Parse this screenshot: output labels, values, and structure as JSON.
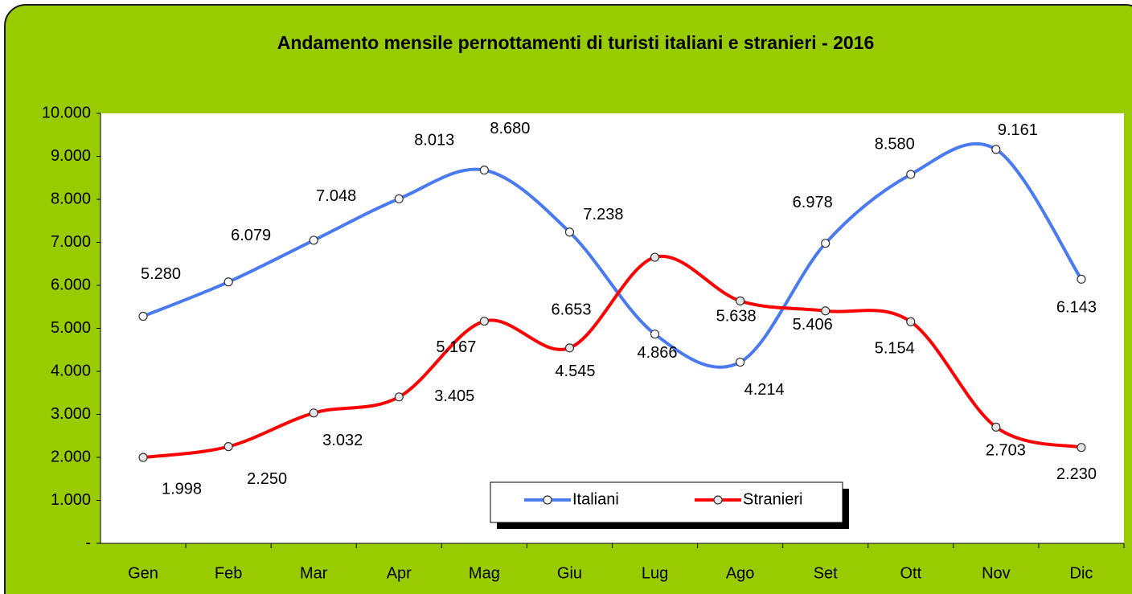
{
  "chart_data": {
    "type": "line",
    "title": "Andamento mensile pernottamenti di turisti italiani e stranieri - 2016",
    "categories": [
      "Gen",
      "Feb",
      "Mar",
      "Apr",
      "Mag",
      "Giu",
      "Lug",
      "Ago",
      "Set",
      "Ott",
      "Nov",
      "Dic"
    ],
    "series": [
      {
        "name": "Italiani",
        "color": "#4a7af0",
        "values": [
          5280,
          6079,
          7048,
          8013,
          8680,
          7238,
          4866,
          4214,
          6978,
          8580,
          9161,
          6143
        ],
        "value_labels": [
          "5.280",
          "6.079",
          "7.048",
          "8.013",
          "8.680",
          "7.238",
          "4.866",
          "4.214",
          "6.978",
          "8.580",
          "9.161",
          "6.143"
        ]
      },
      {
        "name": "Stranieri",
        "color": "#ff0000",
        "values": [
          1998,
          2250,
          3032,
          3405,
          5167,
          4545,
          6653,
          5638,
          5406,
          5154,
          2703,
          2230
        ],
        "value_labels": [
          "1.998",
          "2.250",
          "3.032",
          "3.405",
          "5.167",
          "4.545",
          "6.653",
          "5.638",
          "5.406",
          "5.154",
          "2.703",
          "2.230"
        ]
      }
    ],
    "ylim": [
      0,
      10000
    ],
    "yticks": [
      {
        "value": 0,
        "label": "-"
      },
      {
        "value": 1000,
        "label": "1.000"
      },
      {
        "value": 2000,
        "label": "2.000"
      },
      {
        "value": 3000,
        "label": "3.000"
      },
      {
        "value": 4000,
        "label": "4.000"
      },
      {
        "value": 5000,
        "label": "5.000"
      },
      {
        "value": 6000,
        "label": "6.000"
      },
      {
        "value": 7000,
        "label": "7.000"
      },
      {
        "value": 8000,
        "label": "8.000"
      },
      {
        "value": 9000,
        "label": "9.000"
      },
      {
        "value": 10000,
        "label": "10.000"
      }
    ],
    "grid": false,
    "legend": "bottom"
  }
}
